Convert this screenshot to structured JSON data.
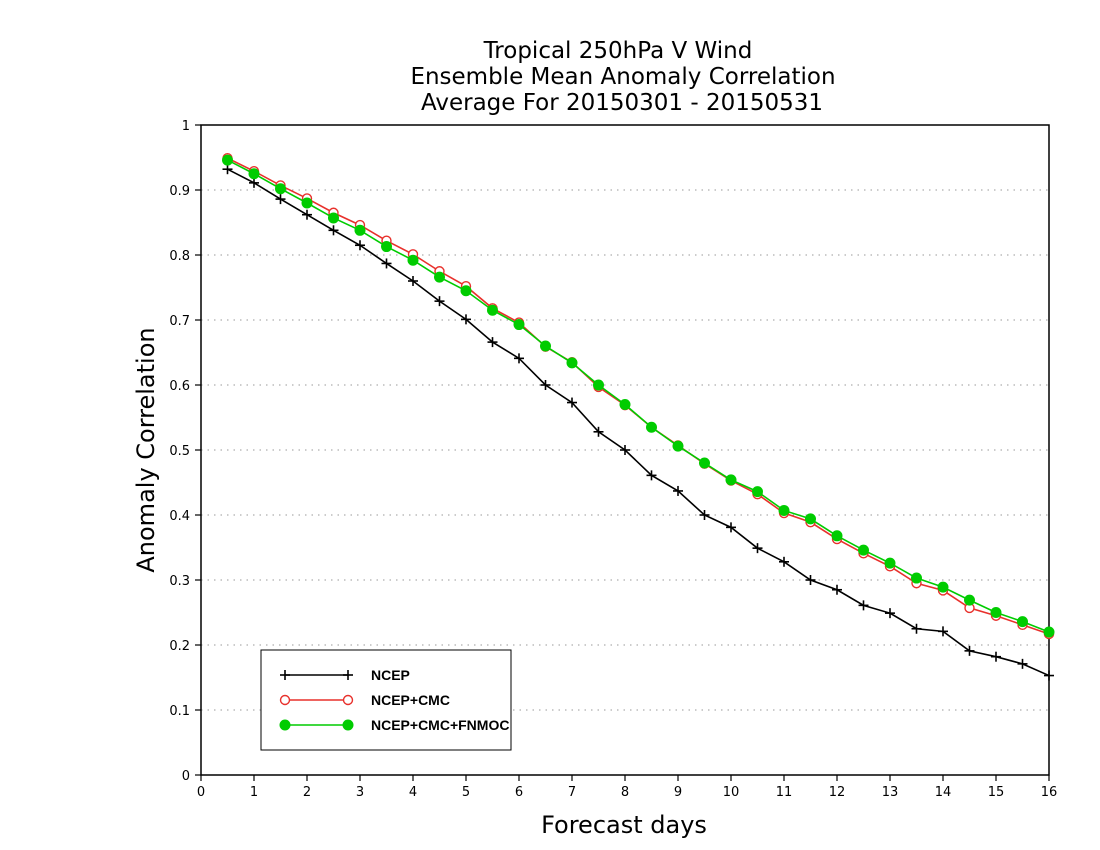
{
  "chart_data": {
    "type": "line",
    "title": [
      "Tropical 250hPa V Wind",
      "Ensemble Mean Anomaly Correlation",
      "Average For 20150301 - 20150531"
    ],
    "xlabel": "Forecast days",
    "ylabel": "Anomaly Correlation",
    "xlim": [
      0,
      16
    ],
    "ylim": [
      0,
      1
    ],
    "xticks": [
      "0",
      "1",
      "2",
      "3",
      "4",
      "5",
      "6",
      "7",
      "8",
      "9",
      "10",
      "11",
      "12",
      "13",
      "14",
      "15",
      "16"
    ],
    "yticks": [
      "0",
      "0.1",
      "0.2",
      "0.3",
      "0.4",
      "0.5",
      "0.6",
      "0.7",
      "0.8",
      "0.9",
      "1"
    ],
    "grid": "horizontal dotted",
    "legend_position": "bottom-left",
    "x": [
      0.5,
      1,
      1.5,
      2,
      2.5,
      3,
      3.5,
      4,
      4.5,
      5,
      5.5,
      6,
      6.5,
      7,
      7.5,
      8,
      8.5,
      9,
      9.5,
      10,
      10.5,
      11,
      11.5,
      12,
      12.5,
      13,
      13.5,
      14,
      14.5,
      15,
      15.5,
      16
    ],
    "series": [
      {
        "name": "NCEP",
        "color": "#000000",
        "marker": "plus",
        "values": [
          0.932,
          0.911,
          0.886,
          0.862,
          0.838,
          0.815,
          0.787,
          0.76,
          0.729,
          0.701,
          0.666,
          0.641,
          0.6,
          0.573,
          0.528,
          0.5,
          0.461,
          0.437,
          0.4,
          0.381,
          0.349,
          0.328,
          0.3,
          0.285,
          0.261,
          0.249,
          0.225,
          0.221,
          0.191,
          0.182,
          0.171,
          0.153
        ]
      },
      {
        "name": "NCEP+CMC",
        "color": "#e8312c",
        "marker": "open-circle",
        "values": [
          0.949,
          0.929,
          0.907,
          0.887,
          0.865,
          0.846,
          0.822,
          0.801,
          0.775,
          0.752,
          0.718,
          0.696,
          0.659,
          0.635,
          0.597,
          0.569,
          0.535,
          0.507,
          0.479,
          0.453,
          0.432,
          0.403,
          0.389,
          0.363,
          0.341,
          0.321,
          0.295,
          0.284,
          0.257,
          0.245,
          0.231,
          0.217
        ]
      },
      {
        "name": "NCEP+CMC+FNMOC",
        "color": "#00cc00",
        "marker": "filled-circle",
        "values": [
          0.946,
          0.925,
          0.902,
          0.88,
          0.857,
          0.838,
          0.813,
          0.792,
          0.766,
          0.745,
          0.715,
          0.693,
          0.66,
          0.634,
          0.6,
          0.57,
          0.535,
          0.506,
          0.48,
          0.454,
          0.436,
          0.407,
          0.394,
          0.368,
          0.346,
          0.326,
          0.303,
          0.289,
          0.269,
          0.25,
          0.236,
          0.22
        ]
      }
    ]
  }
}
